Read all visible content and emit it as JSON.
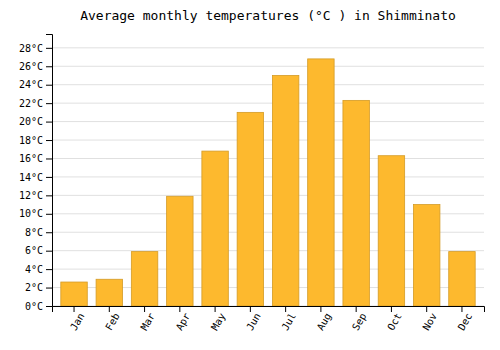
{
  "chart_data": {
    "type": "bar",
    "title": "Average monthly temperatures (°C ) in Shimminato",
    "categories": [
      "Jan",
      "Feb",
      "Mar",
      "Apr",
      "May",
      "Jun",
      "Jul",
      "Aug",
      "Sep",
      "Oct",
      "Nov",
      "Dec"
    ],
    "values": [
      2.6,
      2.9,
      5.9,
      11.9,
      16.8,
      21.0,
      25.0,
      26.8,
      22.3,
      16.3,
      11.0,
      5.9
    ],
    "color": "#FDB92E",
    "ylim": [
      0,
      29.5
    ],
    "yticks": [
      {
        "value": 0,
        "label": "0°C"
      },
      {
        "value": 2,
        "label": "2°C"
      },
      {
        "value": 4,
        "label": "4°C"
      },
      {
        "value": 6,
        "label": "6°C"
      },
      {
        "value": 8,
        "label": "8°C"
      },
      {
        "value": 10,
        "label": "10°C"
      },
      {
        "value": 12,
        "label": "12°C"
      },
      {
        "value": 14,
        "label": "14°C"
      },
      {
        "value": 16,
        "label": "16°C"
      },
      {
        "value": 18,
        "label": "18°C"
      },
      {
        "value": 20,
        "label": "20°C"
      },
      {
        "value": 22,
        "label": "22°C"
      },
      {
        "value": 24,
        "label": "24°C"
      },
      {
        "value": 26,
        "label": "26°C"
      },
      {
        "value": 28,
        "label": "28°C"
      }
    ],
    "grid": true
  }
}
